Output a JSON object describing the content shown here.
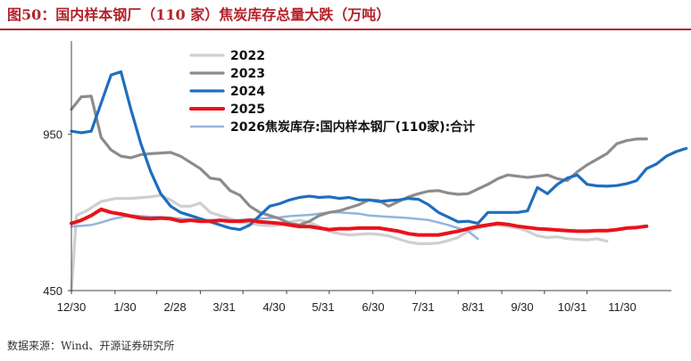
{
  "header": {
    "title": "图50：国内样本钢厂（110 家）焦炭库存总量大跌（万吨）"
  },
  "footer": {
    "source": "数据来源：Wind、开源证券研究所"
  },
  "chart_data": {
    "type": "line",
    "title": "图50：国内样本钢厂（110 家）焦炭库存总量大跌（万吨）",
    "xlabel": "",
    "ylabel": "",
    "x_ticks": [
      "12/30",
      "1/30",
      "2/28",
      "3/31",
      "4/30",
      "5/31",
      "6/30",
      "7/31",
      "8/31",
      "9/30",
      "10/31",
      "11/30"
    ],
    "y_ticks": [
      450,
      950
    ],
    "ylim": [
      450,
      1220
    ],
    "grid": false,
    "legend_position": "top-center",
    "x_unit": "weeks since 12/30",
    "series": [
      {
        "name": "2022",
        "color": "#cfcfcf",
        "values": [
          [
            0,
            450
          ],
          [
            0.5,
            690
          ],
          [
            1.5,
            705
          ],
          [
            3,
            735
          ],
          [
            4.5,
            745
          ],
          [
            6,
            745
          ],
          [
            8,
            750
          ],
          [
            9,
            755
          ],
          [
            10,
            740
          ],
          [
            11,
            720
          ],
          [
            12,
            720
          ],
          [
            13,
            730
          ],
          [
            14,
            700
          ],
          [
            15,
            690
          ],
          [
            16,
            680
          ],
          [
            17,
            670
          ],
          [
            18,
            665
          ],
          [
            19,
            660
          ],
          [
            20,
            658
          ],
          [
            21,
            660
          ],
          [
            22,
            670
          ],
          [
            23,
            675
          ],
          [
            24,
            668
          ],
          [
            25,
            655
          ],
          [
            26,
            640
          ],
          [
            27,
            632
          ],
          [
            28,
            628
          ],
          [
            29,
            630
          ],
          [
            30,
            632
          ],
          [
            31,
            630
          ],
          [
            32,
            625
          ],
          [
            33,
            615
          ],
          [
            34,
            605
          ],
          [
            35,
            600
          ],
          [
            36,
            600
          ],
          [
            37,
            602
          ],
          [
            38,
            610
          ],
          [
            39,
            620
          ],
          [
            40,
            640
          ],
          [
            41,
            650
          ],
          [
            42,
            658
          ],
          [
            43,
            660
          ],
          [
            44,
            655
          ],
          [
            45,
            650
          ],
          [
            46,
            640
          ],
          [
            47,
            625
          ],
          [
            48,
            620
          ],
          [
            49,
            622
          ],
          [
            50,
            616
          ],
          [
            51,
            614
          ],
          [
            52,
            612
          ],
          [
            53,
            616
          ],
          [
            54,
            608
          ]
        ]
      },
      {
        "name": "2023",
        "color": "#8c8c8c",
        "values": [
          [
            0,
            1030
          ],
          [
            1,
            1070
          ],
          [
            2,
            1072
          ],
          [
            3,
            940
          ],
          [
            4,
            900
          ],
          [
            5,
            880
          ],
          [
            6,
            875
          ],
          [
            7,
            885
          ],
          [
            8,
            888
          ],
          [
            9,
            890
          ],
          [
            10,
            892
          ],
          [
            11,
            880
          ],
          [
            12,
            860
          ],
          [
            13,
            840
          ],
          [
            14,
            810
          ],
          [
            15,
            805
          ],
          [
            16,
            770
          ],
          [
            17,
            755
          ],
          [
            18,
            720
          ],
          [
            19,
            700
          ],
          [
            20,
            690
          ],
          [
            21,
            680
          ],
          [
            22,
            665
          ],
          [
            23,
            660
          ],
          [
            24,
            672
          ],
          [
            25,
            690
          ],
          [
            26,
            700
          ],
          [
            27,
            705
          ],
          [
            28,
            715
          ],
          [
            29,
            725
          ],
          [
            30,
            740
          ],
          [
            31,
            738
          ],
          [
            32,
            720
          ],
          [
            33,
            735
          ],
          [
            34,
            750
          ],
          [
            35,
            760
          ],
          [
            36,
            768
          ],
          [
            37,
            770
          ],
          [
            38,
            762
          ],
          [
            39,
            758
          ],
          [
            40,
            760
          ],
          [
            41,
            775
          ],
          [
            42,
            790
          ],
          [
            43,
            808
          ],
          [
            44,
            820
          ],
          [
            45,
            816
          ],
          [
            46,
            812
          ],
          [
            47,
            816
          ],
          [
            48,
            820
          ],
          [
            49,
            808
          ],
          [
            50,
            802
          ],
          [
            51,
            830
          ],
          [
            52,
            852
          ],
          [
            53,
            870
          ],
          [
            54,
            888
          ],
          [
            55,
            920
          ],
          [
            56,
            930
          ],
          [
            57,
            935
          ],
          [
            58,
            935
          ]
        ]
      },
      {
        "name": "2024",
        "color": "#1f6ebe",
        "values": [
          [
            0,
            960
          ],
          [
            1,
            955
          ],
          [
            2,
            960
          ],
          [
            3,
            1050
          ],
          [
            4,
            1140
          ],
          [
            5,
            1150
          ],
          [
            6,
            1030
          ],
          [
            7,
            920
          ],
          [
            8,
            830
          ],
          [
            9,
            760
          ],
          [
            10,
            720
          ],
          [
            11,
            700
          ],
          [
            12,
            690
          ],
          [
            13,
            680
          ],
          [
            14,
            670
          ],
          [
            15,
            660
          ],
          [
            16,
            650
          ],
          [
            17,
            645
          ],
          [
            18,
            660
          ],
          [
            19,
            690
          ],
          [
            20,
            720
          ],
          [
            21,
            728
          ],
          [
            22,
            740
          ],
          [
            23,
            748
          ],
          [
            24,
            752
          ],
          [
            25,
            748
          ],
          [
            26,
            750
          ],
          [
            27,
            745
          ],
          [
            28,
            748
          ],
          [
            29,
            740
          ],
          [
            30,
            740
          ],
          [
            31,
            735
          ],
          [
            32,
            738
          ],
          [
            33,
            740
          ],
          [
            34,
            745
          ],
          [
            35,
            742
          ],
          [
            36,
            725
          ],
          [
            37,
            700
          ],
          [
            38,
            685
          ],
          [
            39,
            670
          ],
          [
            40,
            672
          ],
          [
            41,
            665
          ],
          [
            42,
            700
          ],
          [
            43,
            700
          ],
          [
            44,
            700
          ],
          [
            45,
            700
          ],
          [
            46,
            705
          ],
          [
            47,
            780
          ],
          [
            48,
            760
          ],
          [
            49,
            790
          ],
          [
            50,
            810
          ],
          [
            51,
            820
          ],
          [
            52,
            790
          ],
          [
            53,
            785
          ],
          [
            54,
            784
          ],
          [
            55,
            786
          ],
          [
            56,
            792
          ],
          [
            57,
            802
          ],
          [
            58,
            840
          ],
          [
            59,
            855
          ],
          [
            60,
            880
          ],
          [
            61,
            895
          ],
          [
            62,
            905
          ]
        ]
      },
      {
        "name": "2025",
        "color": "#e8131b",
        "values": [
          [
            0,
            665
          ],
          [
            1,
            675
          ],
          [
            2,
            690
          ],
          [
            3,
            710
          ],
          [
            4,
            700
          ],
          [
            5,
            695
          ],
          [
            6,
            688
          ],
          [
            7,
            682
          ],
          [
            8,
            680
          ],
          [
            9,
            682
          ],
          [
            10,
            680
          ],
          [
            11,
            672
          ],
          [
            12,
            675
          ],
          [
            13,
            672
          ],
          [
            14,
            672
          ],
          [
            15,
            675
          ],
          [
            16,
            672
          ],
          [
            17,
            672
          ],
          [
            18,
            675
          ],
          [
            19,
            670
          ],
          [
            20,
            668
          ],
          [
            21,
            665
          ],
          [
            22,
            660
          ],
          [
            23,
            655
          ],
          [
            24,
            655
          ],
          [
            25,
            650
          ],
          [
            26,
            645
          ],
          [
            27,
            648
          ],
          [
            28,
            648
          ],
          [
            29,
            650
          ],
          [
            30,
            650
          ],
          [
            31,
            650
          ],
          [
            32,
            645
          ],
          [
            33,
            640
          ],
          [
            34,
            632
          ],
          [
            35,
            628
          ],
          [
            36,
            628
          ],
          [
            37,
            628
          ],
          [
            38,
            634
          ],
          [
            39,
            640
          ],
          [
            40,
            648
          ],
          [
            41,
            655
          ],
          [
            42,
            660
          ],
          [
            43,
            665
          ],
          [
            44,
            662
          ],
          [
            45,
            656
          ],
          [
            46,
            652
          ],
          [
            47,
            648
          ],
          [
            48,
            646
          ],
          [
            49,
            644
          ],
          [
            50,
            642
          ],
          [
            51,
            640
          ],
          [
            52,
            640
          ],
          [
            53,
            642
          ],
          [
            54,
            642
          ],
          [
            55,
            645
          ],
          [
            56,
            650
          ],
          [
            57,
            652
          ],
          [
            58,
            656
          ]
        ]
      },
      {
        "name": "2026焦炭库存:国内样本钢厂(110家):合计",
        "color": "#93b4dc",
        "values": [
          [
            0,
            655
          ],
          [
            1,
            657
          ],
          [
            2,
            660
          ],
          [
            3,
            668
          ],
          [
            4,
            678
          ],
          [
            5,
            685
          ],
          [
            6,
            690
          ],
          [
            7,
            688
          ],
          [
            8,
            686
          ],
          [
            9,
            685
          ],
          [
            10,
            683
          ],
          [
            11,
            680
          ],
          [
            12,
            678
          ],
          [
            13,
            676
          ],
          [
            14,
            676
          ],
          [
            15,
            676
          ],
          [
            16,
            675
          ],
          [
            17,
            676
          ],
          [
            18,
            678
          ],
          [
            19,
            680
          ],
          [
            20,
            682
          ],
          [
            21,
            684
          ],
          [
            22,
            688
          ],
          [
            23,
            690
          ],
          [
            24,
            692
          ],
          [
            25,
            696
          ],
          [
            26,
            700
          ],
          [
            27,
            700
          ],
          [
            28,
            698
          ],
          [
            29,
            696
          ],
          [
            30,
            690
          ],
          [
            31,
            688
          ],
          [
            32,
            686
          ],
          [
            33,
            684
          ],
          [
            34,
            682
          ],
          [
            35,
            679
          ],
          [
            36,
            676
          ],
          [
            37,
            668
          ],
          [
            38,
            660
          ],
          [
            39,
            650
          ],
          [
            40,
            640
          ],
          [
            41,
            615
          ]
        ]
      }
    ]
  }
}
